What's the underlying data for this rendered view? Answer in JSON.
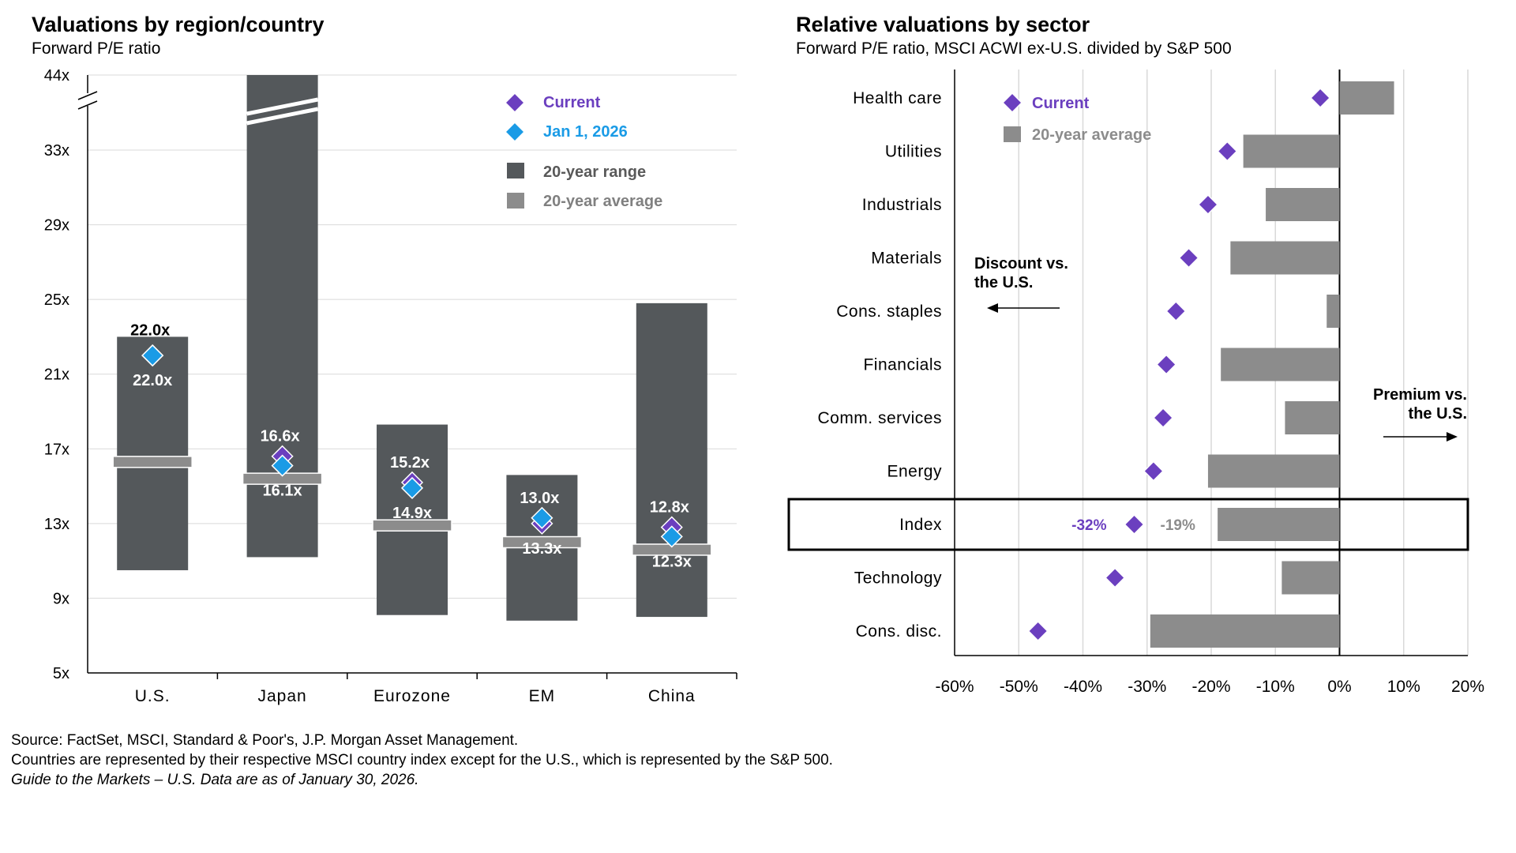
{
  "chart_data": [
    {
      "type": "bar",
      "title": "Valuations by region/country",
      "subtitle": "Forward P/E ratio",
      "ylim": [
        5,
        44
      ],
      "ytick_labels": [
        "44x",
        "33x",
        "29x",
        "25x",
        "21x",
        "17x",
        "13x",
        "9x",
        "5x"
      ],
      "categories": [
        "U.S.",
        "Japan",
        "Eurozone",
        "EM",
        "China"
      ],
      "series": [
        {
          "name": "20-year range",
          "values": [
            [
              10.5,
              23.0
            ],
            [
              11.2,
              44.0
            ],
            [
              8.1,
              18.3
            ],
            [
              7.8,
              15.6
            ],
            [
              8.0,
              24.8
            ]
          ]
        },
        {
          "name": "20-year average",
          "values": [
            16.3,
            15.4,
            12.9,
            12.0,
            11.6
          ]
        },
        {
          "name": "Current",
          "values": [
            22.0,
            16.6,
            15.2,
            13.0,
            12.8
          ]
        },
        {
          "name": "Jan 1, 2026",
          "values": [
            22.0,
            16.1,
            14.9,
            13.3,
            12.3
          ]
        }
      ],
      "data_labels": {
        "current": [
          "22.0x",
          "16.6x",
          "15.2x",
          "13.0x",
          "12.8x"
        ],
        "jan": [
          "22.0x",
          "16.1x",
          "14.9x",
          "13.3x",
          "12.3x"
        ]
      },
      "axis_break": true,
      "legend": {
        "position": "top-right",
        "items": [
          "Current",
          "Jan 1, 2026",
          "20-year range",
          "20-year average"
        ]
      },
      "colors": {
        "range": "#54585b",
        "average": "#8c8c8c",
        "current": "#6b3fbf",
        "jan": "#1a9be6",
        "grid": "#d9d9d9"
      }
    },
    {
      "type": "bar",
      "title": "Relative valuations by sector",
      "subtitle": "Forward P/E ratio, MSCI ACWI ex-U.S. divided by S&P 500",
      "xlim": [
        -60,
        20
      ],
      "xtick_labels": [
        "-60%",
        "-50%",
        "-40%",
        "-30%",
        "-20%",
        "-10%",
        "0%",
        "10%",
        "20%"
      ],
      "categories": [
        "Health care",
        "Utilities",
        "Industrials",
        "Materials",
        "Cons. staples",
        "Financials",
        "Comm. services",
        "Energy",
        "Index",
        "Technology",
        "Cons. disc."
      ],
      "series": [
        {
          "name": "20-year average",
          "values": [
            8.5,
            -15,
            -11.5,
            -17,
            -2,
            -18.5,
            -8.5,
            -20.5,
            -19,
            -9,
            -29.5
          ]
        },
        {
          "name": "Current",
          "values": [
            -3,
            -17.5,
            -20.5,
            -23.5,
            -25.5,
            -27,
            -27.5,
            -29,
            -32,
            -35,
            -47
          ]
        }
      ],
      "index_labels": {
        "current": "-32%",
        "average": "-19%"
      },
      "annotations": {
        "discount": [
          "Discount  vs.",
          "the U.S."
        ],
        "premium": [
          "Premium vs.",
          "the U.S."
        ]
      },
      "legend": {
        "position": "top-left",
        "items": [
          "Current",
          "20-year average"
        ]
      },
      "colors": {
        "average": "#8c8c8c",
        "current": "#6b3fbf",
        "grid": "#d9d9d9"
      }
    }
  ],
  "footer": {
    "source": "Source: FactSet, MSCI, Standard & Poor's, J.P. Morgan Asset Management.",
    "note": "Countries are represented by their respective MSCI country index except for the U.S., which is represented by the S&P 500.",
    "guide": "Guide to the Markets – U.S. Data are as of January 30, 2026."
  }
}
